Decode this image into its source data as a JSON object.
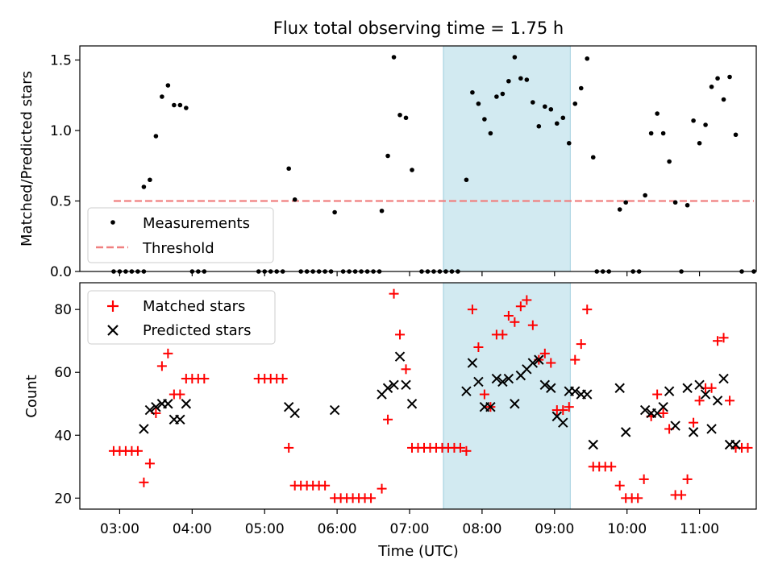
{
  "figure": {
    "title": "Flux total observing time = 1.75 h"
  },
  "chart_data": [
    {
      "type": "scatter",
      "panel": "top",
      "xlabel": "Time (UTC)",
      "ylabel": "Matched/Predicted stars",
      "xlim": [
        "02:27",
        "11:47"
      ],
      "ylim": [
        0,
        1.6
      ],
      "yticks": [
        0.0,
        0.5,
        1.0,
        1.5
      ],
      "ytick_labels": [
        "0.0",
        "0.5",
        "1.0",
        "1.5"
      ],
      "legend_position": "lower-left",
      "highlight": {
        "x_start": "07:28",
        "x_end": "09:13",
        "color": "#add8e6"
      },
      "series": [
        {
          "name": "Measurements",
          "marker": "dot",
          "color": "#000000",
          "points": [
            [
              "02:55",
              0
            ],
            [
              "03:00",
              0
            ],
            [
              "03:05",
              0
            ],
            [
              "03:10",
              0
            ],
            [
              "03:15",
              0
            ],
            [
              "03:20",
              0
            ],
            [
              "03:20",
              0.6
            ],
            [
              "03:25",
              0.65
            ],
            [
              "03:30",
              0.96
            ],
            [
              "03:35",
              1.24
            ],
            [
              "03:40",
              1.32
            ],
            [
              "03:45",
              1.18
            ],
            [
              "03:50",
              1.18
            ],
            [
              "03:55",
              1.16
            ],
            [
              "04:00",
              0
            ],
            [
              "04:05",
              0
            ],
            [
              "04:10",
              0
            ],
            [
              "04:55",
              0
            ],
            [
              "05:00",
              0
            ],
            [
              "05:05",
              0
            ],
            [
              "05:10",
              0
            ],
            [
              "05:15",
              0
            ],
            [
              "05:20",
              0.73
            ],
            [
              "05:25",
              0.51
            ],
            [
              "05:30",
              0
            ],
            [
              "05:35",
              0
            ],
            [
              "05:40",
              0
            ],
            [
              "05:45",
              0
            ],
            [
              "05:50",
              0
            ],
            [
              "05:55",
              0
            ],
            [
              "05:58",
              0.42
            ],
            [
              "06:05",
              0
            ],
            [
              "06:10",
              0
            ],
            [
              "06:15",
              0
            ],
            [
              "06:20",
              0
            ],
            [
              "06:25",
              0
            ],
            [
              "06:30",
              0
            ],
            [
              "06:35",
              0
            ],
            [
              "06:37",
              0.43
            ],
            [
              "06:42",
              0.82
            ],
            [
              "06:47",
              1.52
            ],
            [
              "06:52",
              1.11
            ],
            [
              "06:57",
              1.09
            ],
            [
              "07:02",
              0.72
            ],
            [
              "07:10",
              0
            ],
            [
              "07:15",
              0
            ],
            [
              "07:20",
              0
            ],
            [
              "07:25",
              0
            ],
            [
              "07:30",
              0
            ],
            [
              "07:35",
              0
            ],
            [
              "07:40",
              0
            ],
            [
              "07:47",
              0.65
            ],
            [
              "07:52",
              1.27
            ],
            [
              "07:57",
              1.19
            ],
            [
              "08:02",
              1.08
            ],
            [
              "08:07",
              0.98
            ],
            [
              "08:12",
              1.24
            ],
            [
              "08:17",
              1.26
            ],
            [
              "08:22",
              1.35
            ],
            [
              "08:27",
              1.52
            ],
            [
              "08:32",
              1.37
            ],
            [
              "08:37",
              1.36
            ],
            [
              "08:42",
              1.2
            ],
            [
              "08:47",
              1.03
            ],
            [
              "08:52",
              1.17
            ],
            [
              "08:57",
              1.15
            ],
            [
              "09:02",
              1.05
            ],
            [
              "09:07",
              1.09
            ],
            [
              "09:12",
              0.91
            ],
            [
              "09:17",
              1.19
            ],
            [
              "09:22",
              1.3
            ],
            [
              "09:27",
              1.51
            ],
            [
              "09:32",
              0.81
            ],
            [
              "09:35",
              0
            ],
            [
              "09:40",
              0
            ],
            [
              "09:45",
              0
            ],
            [
              "09:54",
              0.44
            ],
            [
              "09:59",
              0.49
            ],
            [
              "10:05",
              0
            ],
            [
              "10:10",
              0
            ],
            [
              "10:15",
              0.54
            ],
            [
              "10:20",
              0.98
            ],
            [
              "10:25",
              1.12
            ],
            [
              "10:30",
              0.98
            ],
            [
              "10:35",
              0.78
            ],
            [
              "10:40",
              0.49
            ],
            [
              "10:45",
              0
            ],
            [
              "10:50",
              0.47
            ],
            [
              "10:55",
              1.07
            ],
            [
              "11:00",
              0.91
            ],
            [
              "11:05",
              1.04
            ],
            [
              "11:10",
              1.31
            ],
            [
              "11:15",
              1.37
            ],
            [
              "11:20",
              1.22
            ],
            [
              "11:25",
              1.38
            ],
            [
              "11:30",
              0.97
            ],
            [
              "11:35",
              0
            ],
            [
              "11:45",
              0
            ]
          ]
        },
        {
          "name": "Threshold",
          "marker": "dashed-line",
          "color": "#f08080",
          "points": [
            [
              "02:55",
              0.5
            ],
            [
              "11:45",
              0.5
            ]
          ]
        }
      ]
    },
    {
      "type": "scatter",
      "panel": "bottom",
      "xlabel": "Time (UTC)",
      "ylabel": "Count",
      "xlim": [
        "02:27",
        "11:47"
      ],
      "ylim": [
        16.5,
        88.5
      ],
      "yticks": [
        20,
        40,
        60,
        80
      ],
      "ytick_labels": [
        "20",
        "40",
        "60",
        "80"
      ],
      "xtick_labels": [
        "03:00",
        "04:00",
        "05:00",
        "06:00",
        "07:00",
        "08:00",
        "09:00",
        "10:00",
        "11:00"
      ],
      "legend_position": "upper-left",
      "highlight": {
        "x_start": "07:28",
        "x_end": "09:13",
        "color": "#add8e6"
      },
      "series": [
        {
          "name": "Matched stars",
          "marker": "plus",
          "color": "#ff0000",
          "points": [
            [
              "02:55",
              35
            ],
            [
              "03:00",
              35
            ],
            [
              "03:05",
              35
            ],
            [
              "03:10",
              35
            ],
            [
              "03:15",
              35
            ],
            [
              "03:20",
              25
            ],
            [
              "03:25",
              31
            ],
            [
              "03:30",
              47
            ],
            [
              "03:35",
              62
            ],
            [
              "03:40",
              66
            ],
            [
              "03:45",
              53
            ],
            [
              "03:50",
              53
            ],
            [
              "03:55",
              58
            ],
            [
              "04:00",
              58
            ],
            [
              "04:05",
              58
            ],
            [
              "04:10",
              58
            ],
            [
              "04:55",
              58
            ],
            [
              "05:00",
              58
            ],
            [
              "05:05",
              58
            ],
            [
              "05:10",
              58
            ],
            [
              "05:15",
              58
            ],
            [
              "05:20",
              36
            ],
            [
              "05:25",
              24
            ],
            [
              "05:30",
              24
            ],
            [
              "05:35",
              24
            ],
            [
              "05:40",
              24
            ],
            [
              "05:45",
              24
            ],
            [
              "05:50",
              24
            ],
            [
              "05:58",
              20
            ],
            [
              "06:03",
              20
            ],
            [
              "06:08",
              20
            ],
            [
              "06:13",
              20
            ],
            [
              "06:18",
              20
            ],
            [
              "06:23",
              20
            ],
            [
              "06:28",
              20
            ],
            [
              "06:37",
              23
            ],
            [
              "06:42",
              45
            ],
            [
              "06:47",
              85
            ],
            [
              "06:52",
              72
            ],
            [
              "06:57",
              61
            ],
            [
              "07:02",
              36
            ],
            [
              "07:07",
              36
            ],
            [
              "07:12",
              36
            ],
            [
              "07:17",
              36
            ],
            [
              "07:22",
              36
            ],
            [
              "07:27",
              36
            ],
            [
              "07:32",
              36
            ],
            [
              "07:37",
              36
            ],
            [
              "07:42",
              36
            ],
            [
              "07:47",
              35
            ],
            [
              "07:52",
              80
            ],
            [
              "07:57",
              68
            ],
            [
              "08:02",
              53
            ],
            [
              "08:07",
              49
            ],
            [
              "08:12",
              72
            ],
            [
              "08:17",
              72
            ],
            [
              "08:22",
              78
            ],
            [
              "08:27",
              76
            ],
            [
              "08:32",
              81
            ],
            [
              "08:37",
              83
            ],
            [
              "08:42",
              75
            ],
            [
              "08:47",
              64
            ],
            [
              "08:52",
              66
            ],
            [
              "08:57",
              63
            ],
            [
              "09:02",
              48
            ],
            [
              "09:07",
              48
            ],
            [
              "09:12",
              49
            ],
            [
              "09:17",
              64
            ],
            [
              "09:22",
              69
            ],
            [
              "09:27",
              80
            ],
            [
              "09:32",
              30
            ],
            [
              "09:37",
              30
            ],
            [
              "09:42",
              30
            ],
            [
              "09:47",
              30
            ],
            [
              "09:54",
              24
            ],
            [
              "09:59",
              20
            ],
            [
              "10:04",
              20
            ],
            [
              "10:09",
              20
            ],
            [
              "10:14",
              26
            ],
            [
              "10:20",
              46
            ],
            [
              "10:25",
              53
            ],
            [
              "10:30",
              47
            ],
            [
              "10:35",
              42
            ],
            [
              "10:40",
              21
            ],
            [
              "10:45",
              21
            ],
            [
              "10:50",
              26
            ],
            [
              "10:55",
              44
            ],
            [
              "11:00",
              51
            ],
            [
              "11:05",
              55
            ],
            [
              "11:10",
              55
            ],
            [
              "11:15",
              70
            ],
            [
              "11:20",
              71
            ],
            [
              "11:25",
              51
            ],
            [
              "11:30",
              36
            ],
            [
              "11:35",
              36
            ],
            [
              "11:40",
              36
            ]
          ]
        },
        {
          "name": "Predicted stars",
          "marker": "x",
          "color": "#000000",
          "points": [
            [
              "03:20",
              42
            ],
            [
              "03:25",
              48
            ],
            [
              "03:30",
              49
            ],
            [
              "03:35",
              50
            ],
            [
              "03:40",
              50
            ],
            [
              "03:45",
              45
            ],
            [
              "03:50",
              45
            ],
            [
              "03:55",
              50
            ],
            [
              "05:20",
              49
            ],
            [
              "05:25",
              47
            ],
            [
              "05:58",
              48
            ],
            [
              "06:37",
              53
            ],
            [
              "06:42",
              55
            ],
            [
              "06:47",
              56
            ],
            [
              "06:52",
              65
            ],
            [
              "06:57",
              56
            ],
            [
              "07:02",
              50
            ],
            [
              "07:47",
              54
            ],
            [
              "07:52",
              63
            ],
            [
              "07:57",
              57
            ],
            [
              "08:02",
              49
            ],
            [
              "08:07",
              49
            ],
            [
              "08:12",
              58
            ],
            [
              "08:17",
              57
            ],
            [
              "08:22",
              58
            ],
            [
              "08:27",
              50
            ],
            [
              "08:32",
              59
            ],
            [
              "08:37",
              61
            ],
            [
              "08:42",
              63
            ],
            [
              "08:47",
              64
            ],
            [
              "08:52",
              56
            ],
            [
              "08:57",
              55
            ],
            [
              "09:02",
              46
            ],
            [
              "09:07",
              44
            ],
            [
              "09:12",
              54
            ],
            [
              "09:17",
              54
            ],
            [
              "09:22",
              53
            ],
            [
              "09:27",
              53
            ],
            [
              "09:32",
              37
            ],
            [
              "09:54",
              55
            ],
            [
              "09:59",
              41
            ],
            [
              "10:15",
              48
            ],
            [
              "10:20",
              47
            ],
            [
              "10:25",
              47
            ],
            [
              "10:30",
              49
            ],
            [
              "10:35",
              54
            ],
            [
              "10:40",
              43
            ],
            [
              "10:50",
              55
            ],
            [
              "10:55",
              41
            ],
            [
              "11:00",
              56
            ],
            [
              "11:05",
              53
            ],
            [
              "11:10",
              42
            ],
            [
              "11:15",
              51
            ],
            [
              "11:20",
              58
            ],
            [
              "11:25",
              37
            ],
            [
              "11:30",
              37
            ]
          ]
        }
      ]
    }
  ]
}
